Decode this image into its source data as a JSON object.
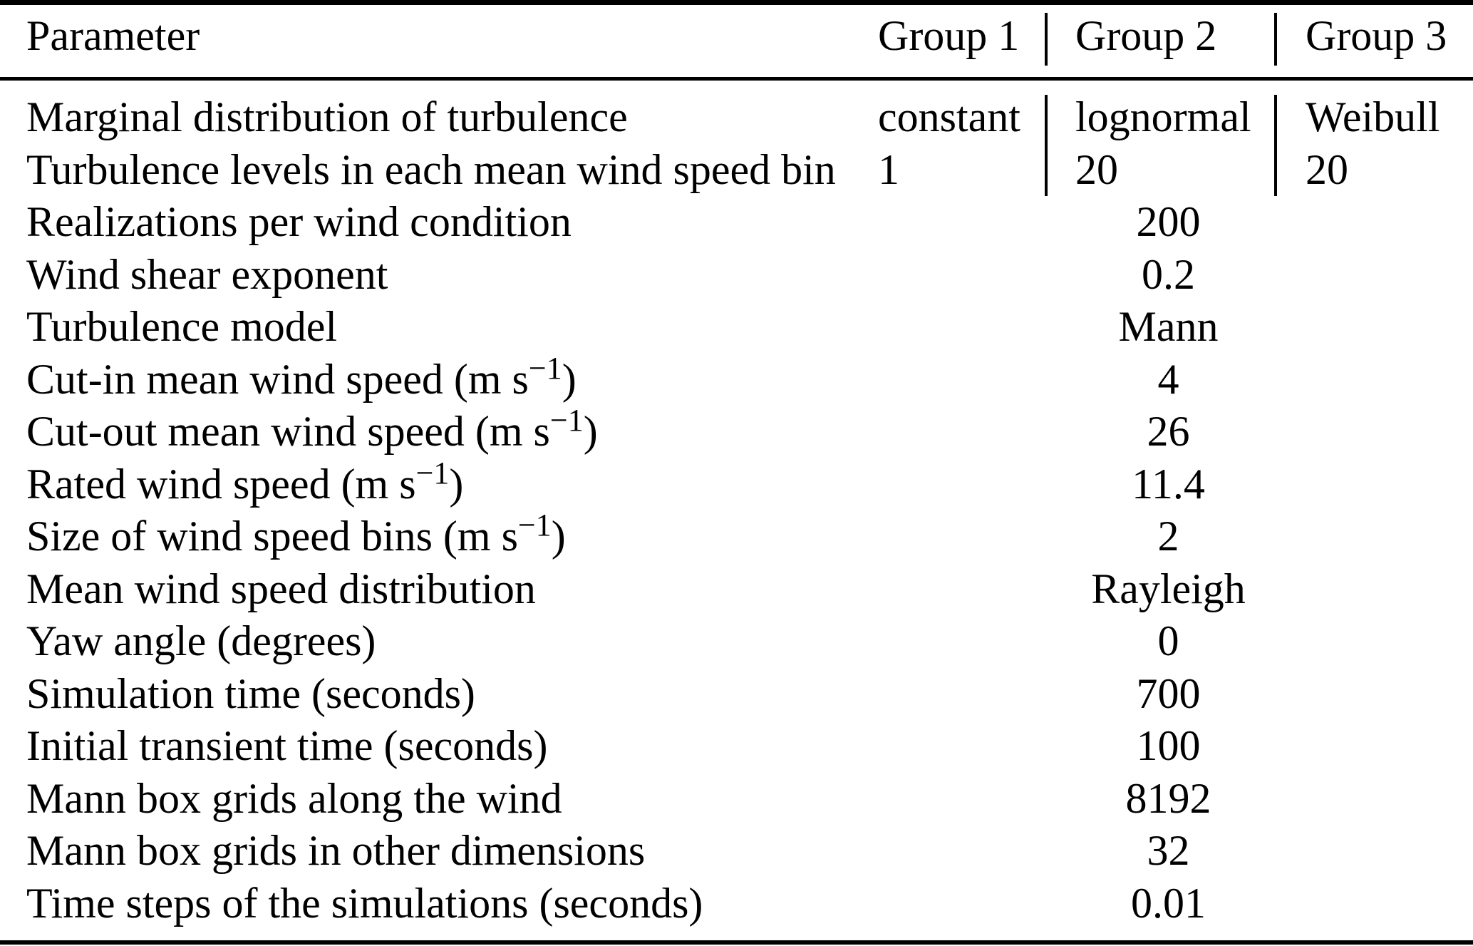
{
  "table": {
    "columns": [
      "Parameter",
      "Group 1",
      "Group 2",
      "Group 3"
    ],
    "rows": [
      {
        "label": "Marginal distribution of turbulence",
        "g1": "constant",
        "g2": "lognormal",
        "g3": "Weibull"
      },
      {
        "label": "Turbulence levels in each mean wind speed bin",
        "g1": "1",
        "g2": "20",
        "g3": "20"
      },
      {
        "label": "Realizations per wind condition",
        "value": "200"
      },
      {
        "label": "Wind shear exponent",
        "value": "0.2"
      },
      {
        "label": "Turbulence model",
        "value": "Mann"
      },
      {
        "label": "Cut-in mean wind speed (m s",
        "sup": "−1",
        "label_end": ")",
        "value": "4"
      },
      {
        "label": "Cut-out mean wind speed (m s",
        "sup": "−1",
        "label_end": ")",
        "value": "26"
      },
      {
        "label": "Rated wind speed (m s",
        "sup": "−1",
        "label_end": ")",
        "value": "11.4"
      },
      {
        "label": "Size of wind speed bins (m s",
        "sup": "−1",
        "label_end": ")",
        "value": "2"
      },
      {
        "label": "Mean wind speed distribution",
        "value": "Rayleigh"
      },
      {
        "label": "Yaw angle (degrees)",
        "value": "0"
      },
      {
        "label": "Simulation time (seconds)",
        "value": "700"
      },
      {
        "label": "Initial transient time (seconds)",
        "value": "100"
      },
      {
        "label": "Mann box grids along the wind",
        "value": "8192"
      },
      {
        "label": "Mann box grids in other dimensions",
        "value": "32"
      },
      {
        "label": "Time steps of the simulations (seconds)",
        "value": "0.01"
      }
    ],
    "colors": {
      "text": "#000000",
      "background": "#ffffff",
      "rule": "#000000"
    }
  }
}
